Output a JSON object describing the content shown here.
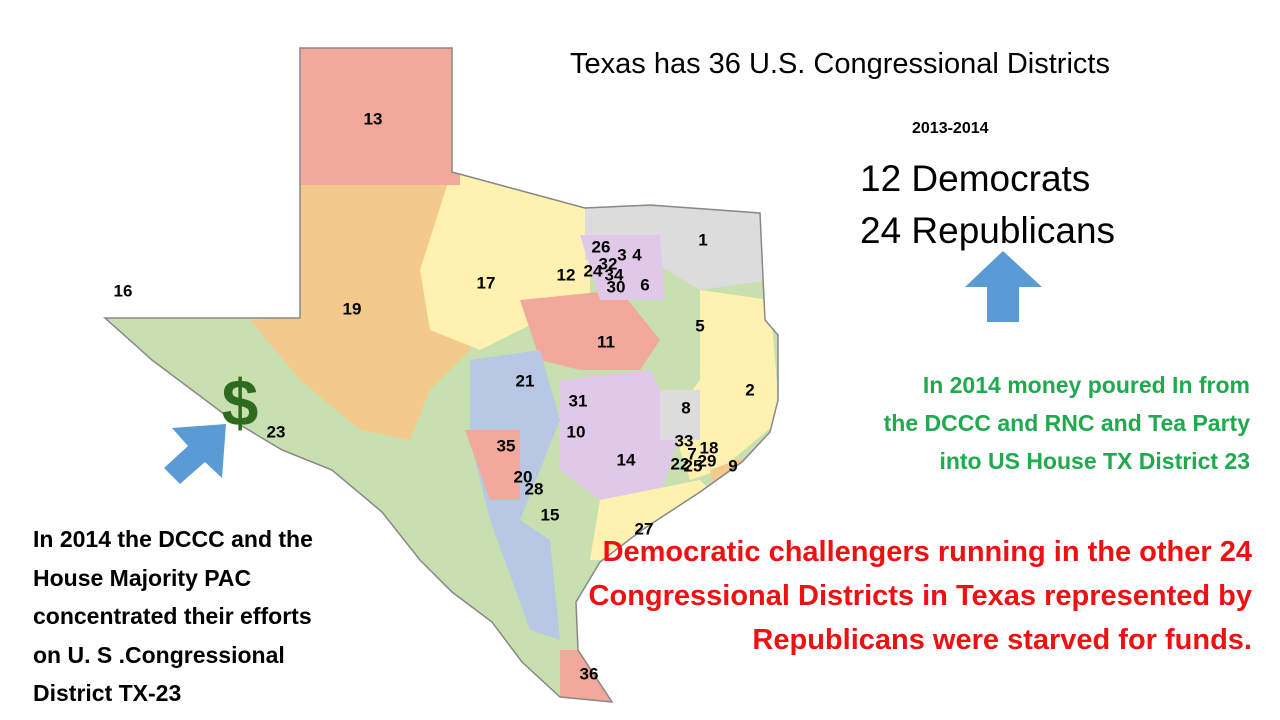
{
  "title": "Texas has 36 U.S. Congressional Districts",
  "period": "2013-2014",
  "democrats": "12 Democrats",
  "republicans": "24 Republicans",
  "money_symbol": "$",
  "green_note": [
    "In 2014 money poured In from",
    "the DCCC and RNC and Tea Party",
    "into  US House TX District 23"
  ],
  "red_note": [
    "Democratic challengers running in the other  24",
    "Congressional Districts in Texas  represented by",
    "Republicans were starved for funds."
  ],
  "left_note": [
    "In 2014 the DCCC and  the",
    "House Majority PAC",
    "concentrated their efforts",
    "on U. S .Congressional",
    "District TX-23"
  ],
  "districts": [
    "13",
    "19",
    "16",
    "23",
    "17",
    "12",
    "26",
    "3",
    "4",
    "32",
    "24",
    "34",
    "30",
    "6",
    "1",
    "5",
    "11",
    "21",
    "31",
    "10",
    "8",
    "2",
    "35",
    "20",
    "28",
    "14",
    "33",
    "7",
    "18",
    "22",
    "25",
    "29",
    "9",
    "15",
    "27",
    "36"
  ]
}
